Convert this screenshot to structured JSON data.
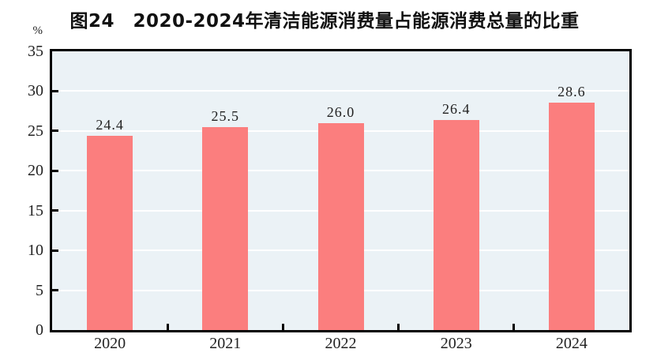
{
  "page": {
    "background_color": "#FFFFFF"
  },
  "chart_data": {
    "type": "bar",
    "title": "图24　2020-2024年清洁能源消费量占能源消费总量的比重",
    "ylabel": "%",
    "xlabel": "",
    "categories": [
      "2020",
      "2021",
      "2022",
      "2023",
      "2024"
    ],
    "values": [
      24.4,
      25.5,
      26.0,
      26.4,
      28.6
    ],
    "value_labels": [
      "24.4",
      "25.5",
      "26.0",
      "26.4",
      "28.6"
    ],
    "ylim": [
      0,
      35
    ],
    "yticks": [
      0,
      5,
      10,
      15,
      20,
      25,
      30,
      35
    ],
    "grid": true,
    "legend_position": "none",
    "bar_color": "#FB7E7E",
    "plot_background_color": "#EBF2F6",
    "gridline_color": "#FFFFFF",
    "axis_frame_color": "#000000",
    "text_color": "#222222"
  }
}
